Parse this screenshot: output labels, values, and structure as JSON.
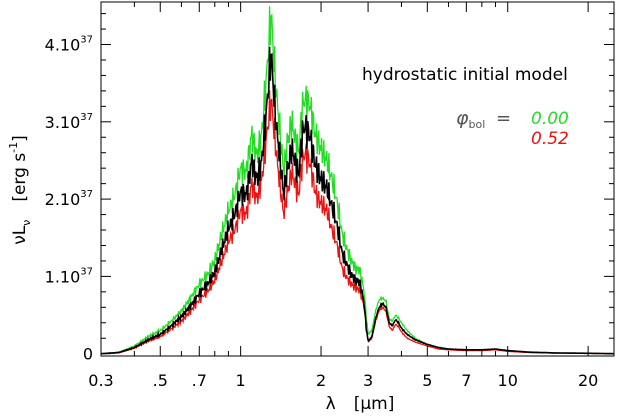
{
  "chart_data": {
    "type": "line",
    "x_scale": "log",
    "xlim": [
      0.3,
      25
    ],
    "ylim": [
      -3e+35,
      4.55e+37
    ],
    "xlabel": {
      "symbol": "λ",
      "unit": "[μm]"
    },
    "ylabel": {
      "symbol": "νL",
      "subscript": "ν",
      "unit": "[erg s",
      "unit_exp": "-1",
      "unit_close": "]"
    },
    "x_ticks": [
      {
        "value": 0.3,
        "label": "0.3"
      },
      {
        "value": 0.5,
        "label": ".5"
      },
      {
        "value": 0.7,
        "label": ".7"
      },
      {
        "value": 1,
        "label": "1"
      },
      {
        "value": 2,
        "label": "2"
      },
      {
        "value": 3,
        "label": "3"
      },
      {
        "value": 5,
        "label": "5"
      },
      {
        "value": 7,
        "label": "7"
      },
      {
        "value": 10,
        "label": "10"
      },
      {
        "value": 20,
        "label": "20"
      }
    ],
    "y_ticks": [
      {
        "value": 0,
        "label": "0",
        "exp": ""
      },
      {
        "value": 1e+37,
        "label": "1.10",
        "exp": "37"
      },
      {
        "value": 2e+37,
        "label": "2.10",
        "exp": "37"
      },
      {
        "value": 3e+37,
        "label": "3.10",
        "exp": "37"
      },
      {
        "value": 4e+37,
        "label": "4.10",
        "exp": "37"
      }
    ],
    "annotation": "hydrostatic initial model",
    "phase": {
      "symbol": "φ",
      "subscript": "bol",
      "equals": "=",
      "values": [
        {
          "label": "0.00",
          "color": "#22dd22"
        },
        {
          "label": "0.52",
          "color": "#ee1111"
        }
      ]
    },
    "series": [
      {
        "color": "#22dd22",
        "x": [
          0.3,
          0.35,
          0.4,
          0.45,
          0.5,
          0.55,
          0.6,
          0.65,
          0.7,
          0.75,
          0.8,
          0.85,
          0.9,
          0.95,
          1.0,
          1.05,
          1.1,
          1.15,
          1.2,
          1.25,
          1.3,
          1.35,
          1.4,
          1.45,
          1.5,
          1.55,
          1.6,
          1.65,
          1.7,
          1.75,
          1.8,
          1.85,
          1.9,
          1.95,
          2.0,
          2.1,
          2.2,
          2.3,
          2.4,
          2.5,
          2.6,
          2.7,
          2.8,
          2.9,
          2.95,
          3.0,
          3.1,
          3.2,
          3.3,
          3.4,
          3.5,
          3.6,
          3.7,
          3.8,
          3.9,
          4.0,
          4.2,
          4.5,
          5.0,
          5.5,
          6.0,
          7.0,
          8.0,
          9.0,
          10.0,
          12.0,
          15.0,
          20.0,
          25.0
        ],
        "y": [
          0.0,
          2e+35,
          1e+36,
          2.2e+36,
          3e+36,
          4.2e+36,
          5.5e+36,
          7.2e+36,
          9e+36,
          1.02e+37,
          1.2e+37,
          1.55e+37,
          1.85e+37,
          2.05e+37,
          2.4e+37,
          2.35e+37,
          2.85e+37,
          2.55e+37,
          2.85e+37,
          3.6e+37,
          4.4e+37,
          3.5e+37,
          2.9e+37,
          2.35e+37,
          2.75e+37,
          3e+37,
          2.8e+37,
          2.6e+37,
          3.2e+37,
          3.3e+37,
          3.25e+37,
          3.1e+37,
          2.85e+37,
          2.75e+37,
          2.65e+37,
          2.5e+37,
          2.25e+37,
          1.95e+37,
          1.55e+37,
          1.35e+37,
          1.2e+37,
          1.1e+37,
          1.08e+37,
          8e+36,
          5e+36,
          2.5e+36,
          3e+36,
          5.5e+36,
          7e+36,
          7.2e+36,
          6.8e+36,
          4.5e+36,
          4.2e+36,
          5e+36,
          4.6e+36,
          4e+36,
          3e+36,
          2e+36,
          1.2e+36,
          8e+35,
          6e+35,
          5e+35,
          5e+35,
          6e+35,
          4e+35,
          2e+35,
          1e+35,
          5e+34,
          0.0
        ]
      },
      {
        "color": "#ee1111",
        "x": [
          0.3,
          0.35,
          0.4,
          0.45,
          0.5,
          0.55,
          0.6,
          0.65,
          0.7,
          0.75,
          0.8,
          0.85,
          0.9,
          0.95,
          1.0,
          1.05,
          1.1,
          1.15,
          1.2,
          1.25,
          1.3,
          1.35,
          1.4,
          1.45,
          1.5,
          1.55,
          1.6,
          1.65,
          1.7,
          1.75,
          1.8,
          1.85,
          1.9,
          1.95,
          2.0,
          2.1,
          2.2,
          2.3,
          2.4,
          2.5,
          2.6,
          2.7,
          2.8,
          2.9,
          2.95,
          3.0,
          3.1,
          3.2,
          3.3,
          3.4,
          3.5,
          3.6,
          3.7,
          3.8,
          3.9,
          4.0,
          4.2,
          4.5,
          5.0,
          5.5,
          6.0,
          7.0,
          8.0,
          9.0,
          10.0,
          12.0,
          15.0,
          20.0,
          25.0
        ],
        "y": [
          0.0,
          1e+35,
          7e+35,
          1.6e+36,
          2.2e+36,
          3.2e+36,
          4.2e+36,
          5.5e+36,
          7e+36,
          8e+36,
          9.5e+36,
          1.2e+37,
          1.45e+37,
          1.6e+37,
          1.85e+37,
          1.8e+37,
          2.2e+37,
          2e+37,
          2.25e+37,
          2.8e+37,
          3.3e+37,
          2.7e+37,
          2.2e+37,
          1.8e+37,
          2.1e+37,
          2.35e+37,
          2.2e+37,
          2.05e+37,
          2.5e+37,
          2.6e+37,
          2.5e+37,
          2.35e+37,
          2.1e+37,
          2e+37,
          1.95e+37,
          1.85e+37,
          1.6e+37,
          1.4e+37,
          1.1e+37,
          9.8e+36,
          9e+36,
          8.5e+36,
          8.2e+36,
          6e+36,
          3.5e+36,
          1.5e+36,
          2e+36,
          4.2e+36,
          5.6e+36,
          6e+36,
          5.5e+36,
          3.5e+36,
          3e+36,
          3.8e+36,
          3.5e+36,
          2.8e+36,
          2e+36,
          1.5e+36,
          1e+36,
          6e+35,
          5e+35,
          4e+35,
          4e+35,
          5e+35,
          3e+35,
          1.5e+35,
          8e+34,
          4e+34,
          0.0
        ]
      },
      {
        "color": "#000000",
        "x": [
          0.3,
          0.35,
          0.4,
          0.45,
          0.5,
          0.55,
          0.6,
          0.65,
          0.7,
          0.75,
          0.8,
          0.85,
          0.9,
          0.95,
          1.0,
          1.05,
          1.1,
          1.15,
          1.2,
          1.25,
          1.3,
          1.35,
          1.4,
          1.45,
          1.5,
          1.55,
          1.6,
          1.65,
          1.7,
          1.75,
          1.8,
          1.85,
          1.9,
          1.95,
          2.0,
          2.1,
          2.2,
          2.3,
          2.4,
          2.5,
          2.6,
          2.7,
          2.8,
          2.9,
          2.95,
          3.0,
          3.1,
          3.2,
          3.3,
          3.4,
          3.5,
          3.6,
          3.7,
          3.8,
          3.9,
          4.0,
          4.2,
          4.5,
          5.0,
          5.5,
          6.0,
          7.0,
          8.0,
          9.0,
          10.0,
          12.0,
          15.0,
          20.0,
          25.0
        ],
        "y": [
          0.0,
          1.5e+35,
          8e+35,
          1.8e+36,
          2.5e+36,
          3.6e+36,
          4.8e+36,
          6.2e+36,
          7.8e+36,
          9e+36,
          1.05e+37,
          1.35e+37,
          1.62e+37,
          1.8e+37,
          2.1e+37,
          2.05e+37,
          2.5e+37,
          2.25e+37,
          2.5e+37,
          3.15e+37,
          3.9e+37,
          3.05e+37,
          2.55e+37,
          2.05e+37,
          2.4e+37,
          2.65e+37,
          2.5e+37,
          2.3e+37,
          2.85e+37,
          2.95e+37,
          2.85e+37,
          2.7e+37,
          2.45e+37,
          2.35e+37,
          2.25e+37,
          2.15e+37,
          1.9e+37,
          1.65e+37,
          1.3e+37,
          1.15e+37,
          1.02e+37,
          9.5e+36,
          9.2e+36,
          6.5e+36,
          3.5e+36,
          1.6e+36,
          2.2e+36,
          4.5e+36,
          6e+36,
          6.5e+36,
          6e+36,
          4e+36,
          3.6e+36,
          4.4e+36,
          4e+36,
          3.3e+36,
          2.5e+36,
          1.8e+36,
          1.2e+36,
          8e+35,
          6e+35,
          5e+35,
          5e+35,
          6e+35,
          4e+35,
          2e+35,
          1e+35,
          5e+34,
          0.0
        ]
      }
    ]
  }
}
